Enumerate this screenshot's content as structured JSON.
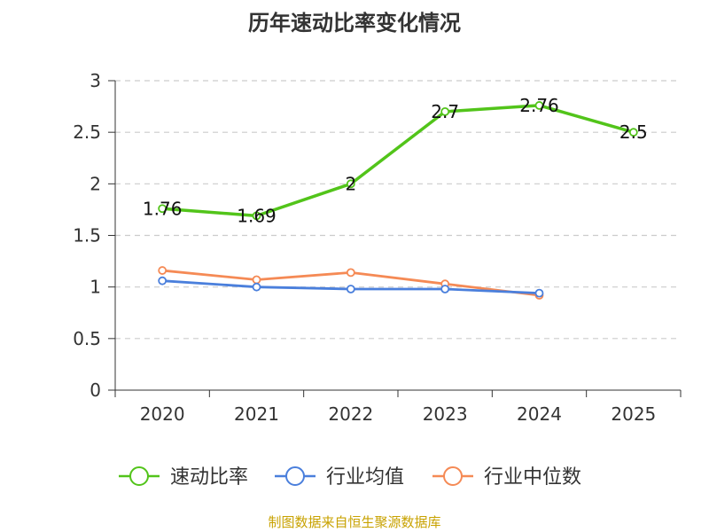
{
  "chart_data": {
    "type": "line",
    "title": "历年速动比率变化情况",
    "categories": [
      "2020",
      "2021",
      "2022",
      "2023",
      "2024",
      "2025"
    ],
    "ylim": [
      0,
      3
    ],
    "yticks": [
      "0",
      "0.5",
      "1",
      "1.5",
      "2",
      "2.5",
      "3"
    ],
    "grid": "horizontal-dashed",
    "legend_position": "bottom",
    "series": [
      {
        "name": "速动比率",
        "color": "#52c41a",
        "values": [
          1.76,
          1.69,
          2.0,
          2.7,
          2.76,
          2.5
        ],
        "labels": [
          "1.76",
          "1.69",
          "2",
          "2.7",
          "2.76",
          "2.5"
        ]
      },
      {
        "name": "行业均值",
        "color": "#4a7fdc",
        "values": [
          1.06,
          1.0,
          0.98,
          0.98,
          0.94,
          null
        ]
      },
      {
        "name": "行业中位数",
        "color": "#f58a55",
        "values": [
          1.16,
          1.07,
          1.14,
          1.03,
          0.92,
          null
        ]
      }
    ],
    "source": "制图数据来自恒生聚源数据库"
  }
}
